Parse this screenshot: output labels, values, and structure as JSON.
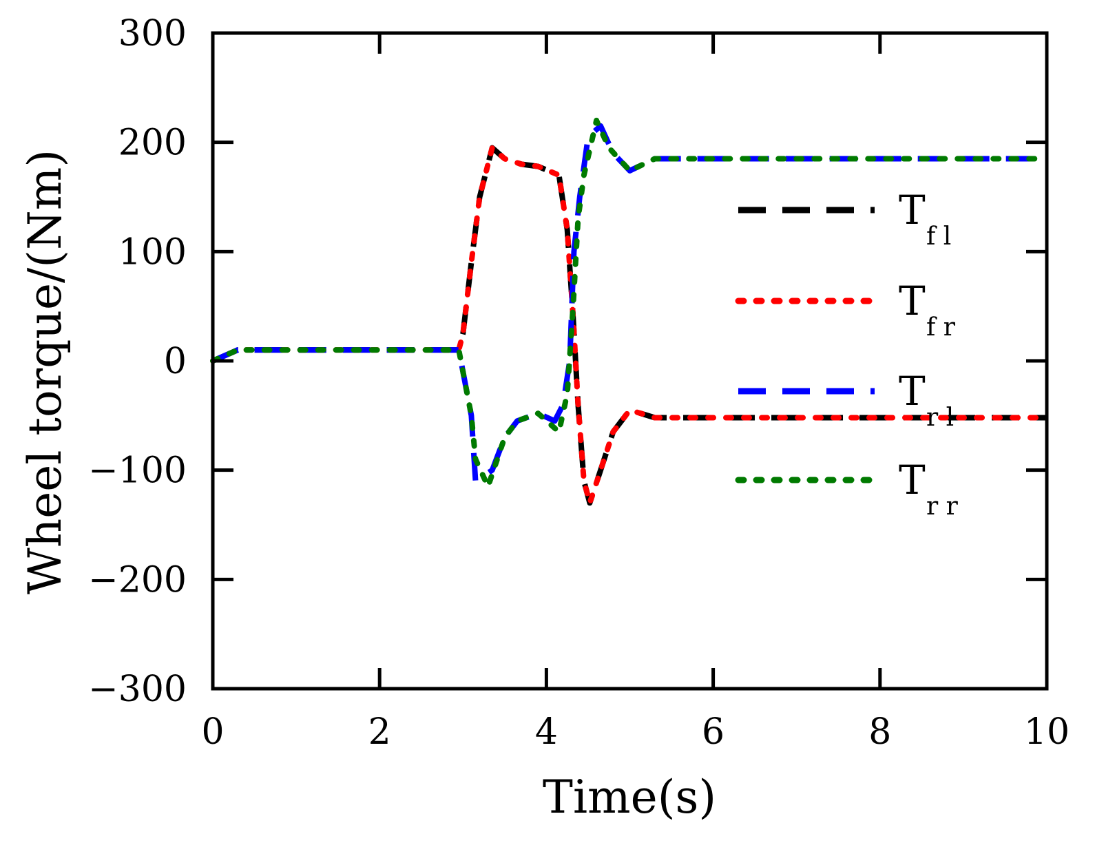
{
  "chart_data": {
    "type": "line",
    "title": "",
    "xlabel": "Time(s)",
    "ylabel": "Wheel torque/(Nm)",
    "xlim": [
      0,
      10
    ],
    "ylim": [
      -300,
      300
    ],
    "x_ticks": [
      0,
      2,
      4,
      6,
      8,
      10
    ],
    "y_ticks": [
      -300,
      -200,
      -100,
      0,
      100,
      200,
      300
    ],
    "x_tick_labels": [
      "0",
      "2",
      "4",
      "6",
      "8",
      "10"
    ],
    "y_tick_labels": [
      "−300",
      "−200",
      "−100",
      "0",
      "100",
      "200",
      "300"
    ],
    "grid": false,
    "legend_position": "right",
    "series": [
      {
        "name": "T",
        "subscript": "f l",
        "color": "#000000",
        "style": "dashed",
        "points": [
          [
            0,
            0
          ],
          [
            0.3,
            10
          ],
          [
            0.8,
            10
          ],
          [
            1.5,
            10
          ],
          [
            2.0,
            10
          ],
          [
            2.5,
            10
          ],
          [
            2.95,
            10
          ],
          [
            3.0,
            25
          ],
          [
            3.1,
            90
          ],
          [
            3.2,
            150
          ],
          [
            3.35,
            195
          ],
          [
            3.5,
            185
          ],
          [
            3.7,
            180
          ],
          [
            3.9,
            178
          ],
          [
            4.15,
            170
          ],
          [
            4.25,
            120
          ],
          [
            4.32,
            40
          ],
          [
            4.38,
            -40
          ],
          [
            4.45,
            -110
          ],
          [
            4.52,
            -130
          ],
          [
            4.65,
            -100
          ],
          [
            4.8,
            -65
          ],
          [
            5.0,
            -45
          ],
          [
            5.3,
            -52
          ],
          [
            5.6,
            -52
          ],
          [
            6.0,
            -52
          ],
          [
            7.0,
            -52
          ],
          [
            8.0,
            -52
          ],
          [
            9.0,
            -52
          ],
          [
            10.0,
            -52
          ]
        ]
      },
      {
        "name": "T",
        "subscript": "f r",
        "color": "#ff0000",
        "style": "dotted",
        "points": [
          [
            0,
            0
          ],
          [
            0.3,
            10
          ],
          [
            0.8,
            10
          ],
          [
            1.5,
            10
          ],
          [
            2.0,
            10
          ],
          [
            2.5,
            10
          ],
          [
            2.95,
            10
          ],
          [
            3.0,
            25
          ],
          [
            3.1,
            90
          ],
          [
            3.2,
            150
          ],
          [
            3.35,
            195
          ],
          [
            3.5,
            185
          ],
          [
            3.7,
            180
          ],
          [
            3.9,
            178
          ],
          [
            4.15,
            170
          ],
          [
            4.25,
            120
          ],
          [
            4.32,
            40
          ],
          [
            4.38,
            -40
          ],
          [
            4.45,
            -110
          ],
          [
            4.52,
            -130
          ],
          [
            4.65,
            -100
          ],
          [
            4.8,
            -65
          ],
          [
            5.0,
            -45
          ],
          [
            5.3,
            -52
          ],
          [
            5.6,
            -52
          ],
          [
            6.0,
            -52
          ],
          [
            7.0,
            -52
          ],
          [
            8.0,
            -52
          ],
          [
            9.0,
            -52
          ],
          [
            10.0,
            -52
          ]
        ]
      },
      {
        "name": "T",
        "subscript": "r l",
        "color": "#0000ff",
        "style": "dashed",
        "points": [
          [
            0,
            0
          ],
          [
            0.3,
            10
          ],
          [
            0.8,
            10
          ],
          [
            1.5,
            10
          ],
          [
            2.0,
            10
          ],
          [
            2.5,
            10
          ],
          [
            2.95,
            10
          ],
          [
            3.0,
            -10
          ],
          [
            3.1,
            -50
          ],
          [
            3.15,
            -110
          ],
          [
            3.35,
            -100
          ],
          [
            3.5,
            -70
          ],
          [
            3.65,
            -55
          ],
          [
            3.9,
            -48
          ],
          [
            4.1,
            -55
          ],
          [
            4.2,
            -40
          ],
          [
            4.28,
            0
          ],
          [
            4.33,
            100
          ],
          [
            4.4,
            150
          ],
          [
            4.5,
            205
          ],
          [
            4.65,
            215
          ],
          [
            4.8,
            190
          ],
          [
            5.0,
            174
          ],
          [
            5.3,
            185
          ],
          [
            5.6,
            185
          ],
          [
            6.0,
            185
          ],
          [
            7.0,
            185
          ],
          [
            8.0,
            185
          ],
          [
            9.0,
            185
          ],
          [
            10.0,
            185
          ]
        ]
      },
      {
        "name": "T",
        "subscript": "r r",
        "color": "#007a00",
        "style": "dotted",
        "points": [
          [
            0,
            0
          ],
          [
            0.3,
            10
          ],
          [
            0.8,
            10
          ],
          [
            1.5,
            10
          ],
          [
            2.0,
            10
          ],
          [
            2.5,
            10
          ],
          [
            2.95,
            10
          ],
          [
            3.0,
            -10
          ],
          [
            3.1,
            -50
          ],
          [
            3.15,
            -90
          ],
          [
            3.3,
            -115
          ],
          [
            3.5,
            -70
          ],
          [
            3.65,
            -55
          ],
          [
            3.9,
            -48
          ],
          [
            4.15,
            -65
          ],
          [
            4.25,
            -30
          ],
          [
            4.32,
            50
          ],
          [
            4.38,
            130
          ],
          [
            4.45,
            170
          ],
          [
            4.6,
            220
          ],
          [
            4.75,
            195
          ],
          [
            5.0,
            174
          ],
          [
            5.3,
            185
          ],
          [
            5.6,
            185
          ],
          [
            6.0,
            185
          ],
          [
            7.0,
            185
          ],
          [
            8.0,
            185
          ],
          [
            9.0,
            185
          ],
          [
            10.0,
            185
          ]
        ]
      }
    ]
  }
}
